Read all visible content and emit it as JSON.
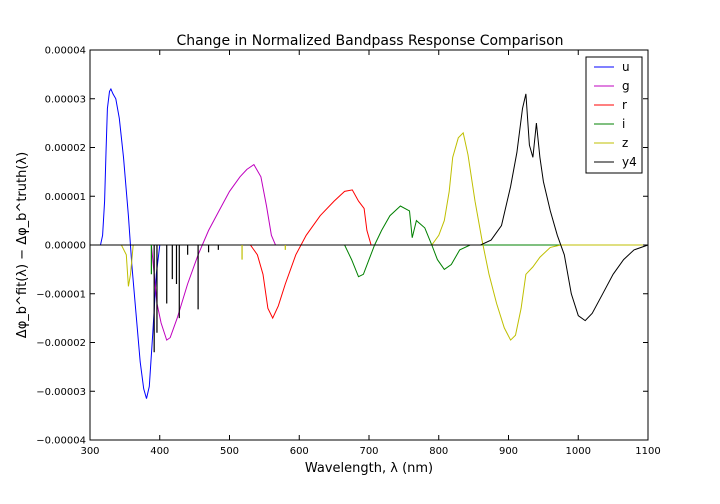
{
  "chart_data": {
    "type": "line",
    "title": "Change in Normalized Bandpass Response Comparison",
    "xlabel": "Wavelength, λ (nm)",
    "ylabel": "Δφ_b^fit(λ) − Δφ_b^truth(λ)",
    "xlim": [
      300,
      1100
    ],
    "ylim": [
      -4e-05,
      4e-05
    ],
    "x_ticks": [
      "300",
      "400",
      "500",
      "600",
      "700",
      "800",
      "900",
      "1000",
      "1100"
    ],
    "y_ticks": [
      "0.00004",
      "0.00003",
      "0.00002",
      "0.00001",
      "0.00000",
      "−0.00001",
      "−0.00002",
      "−0.00003",
      "−0.00004"
    ],
    "grid": false,
    "legend_position": "top-right",
    "series": [
      {
        "name": "u",
        "color": "#0000ff",
        "points": [
          [
            300,
            0
          ],
          [
            315,
            0
          ],
          [
            318,
            2e-06
          ],
          [
            321,
            9e-06
          ],
          [
            323,
            1.9e-05
          ],
          [
            325,
            2.8e-05
          ],
          [
            328,
            3.15e-05
          ],
          [
            330,
            3.2e-05
          ],
          [
            333,
            3.1e-05
          ],
          [
            337,
            3e-05
          ],
          [
            342,
            2.6e-05
          ],
          [
            348,
            1.8e-05
          ],
          [
            355,
            6e-06
          ],
          [
            360,
            -4e-06
          ],
          [
            366,
            -1.4e-05
          ],
          [
            372,
            -2.4e-05
          ],
          [
            377,
            -2.95e-05
          ],
          [
            381,
            -3.15e-05
          ],
          [
            385,
            -2.9e-05
          ],
          [
            390,
            -1.8e-05
          ],
          [
            395,
            -6e-06
          ],
          [
            400,
            0
          ],
          [
            420,
            0
          ],
          [
            1100,
            0
          ]
        ]
      },
      {
        "name": "g",
        "color": "#bf00bf",
        "points": [
          [
            300,
            0
          ],
          [
            388,
            0
          ],
          [
            392,
            -6e-06
          ],
          [
            396,
            -1.2e-05
          ],
          [
            402,
            -1.6e-05
          ],
          [
            410,
            -1.95e-05
          ],
          [
            415,
            -1.9e-05
          ],
          [
            425,
            -1.5e-05
          ],
          [
            440,
            -8e-06
          ],
          [
            455,
            -2e-06
          ],
          [
            470,
            3e-06
          ],
          [
            485,
            7e-06
          ],
          [
            500,
            1.1e-05
          ],
          [
            515,
            1.4e-05
          ],
          [
            525,
            1.55e-05
          ],
          [
            535,
            1.65e-05
          ],
          [
            545,
            1.4e-05
          ],
          [
            553,
            8e-06
          ],
          [
            560,
            2e-06
          ],
          [
            566,
            0
          ],
          [
            1100,
            0
          ]
        ]
      },
      {
        "name": "r",
        "color": "#ff0000",
        "points": [
          [
            300,
            0
          ],
          [
            530,
            0
          ],
          [
            540,
            -2e-06
          ],
          [
            548,
            -6e-06
          ],
          [
            555,
            -1.3e-05
          ],
          [
            562,
            -1.5e-05
          ],
          [
            570,
            -1.25e-05
          ],
          [
            580,
            -8e-06
          ],
          [
            595,
            -2e-06
          ],
          [
            610,
            2e-06
          ],
          [
            630,
            6e-06
          ],
          [
            650,
            9e-06
          ],
          [
            665,
            1.1e-05
          ],
          [
            676,
            1.13e-05
          ],
          [
            685,
            9e-06
          ],
          [
            693,
            7.5e-06
          ],
          [
            697,
            3e-06
          ],
          [
            703,
            0
          ],
          [
            1100,
            0
          ]
        ]
      },
      {
        "name": "i",
        "color": "#008000",
        "points": [
          [
            300,
            0
          ],
          [
            665,
            0
          ],
          [
            675,
            -3e-06
          ],
          [
            685,
            -6.5e-06
          ],
          [
            692,
            -6e-06
          ],
          [
            700,
            -3e-06
          ],
          [
            708,
            0
          ],
          [
            718,
            3e-06
          ],
          [
            730,
            6e-06
          ],
          [
            745,
            8e-06
          ],
          [
            758,
            7e-06
          ],
          [
            762,
            1.5e-06
          ],
          [
            768,
            5e-06
          ],
          [
            780,
            3.5e-06
          ],
          [
            790,
            0
          ],
          [
            798,
            -3e-06
          ],
          [
            808,
            -5e-06
          ],
          [
            818,
            -4e-06
          ],
          [
            830,
            -1e-06
          ],
          [
            845,
            0
          ],
          [
            1100,
            0
          ]
        ]
      },
      {
        "name": "z",
        "color": "#bfbf00",
        "points": [
          [
            300,
            0
          ],
          [
            345,
            0
          ],
          [
            352,
            -2e-06
          ],
          [
            355,
            -8.5e-06
          ],
          [
            358,
            -6e-06
          ],
          [
            362,
            0
          ],
          [
            790,
            0
          ],
          [
            800,
            2e-06
          ],
          [
            808,
            5e-06
          ],
          [
            815,
            1.1e-05
          ],
          [
            820,
            1.8e-05
          ],
          [
            828,
            2.2e-05
          ],
          [
            835,
            2.3e-05
          ],
          [
            842,
            1.85e-05
          ],
          [
            852,
            9e-06
          ],
          [
            862,
            1e-06
          ],
          [
            872,
            -6e-06
          ],
          [
            883,
            -1.2e-05
          ],
          [
            894,
            -1.7e-05
          ],
          [
            903,
            -1.95e-05
          ],
          [
            910,
            -1.85e-05
          ],
          [
            918,
            -1.3e-05
          ],
          [
            925,
            -6e-06
          ],
          [
            935,
            -4.5e-06
          ],
          [
            945,
            -2.5e-06
          ],
          [
            960,
            -5e-07
          ],
          [
            975,
            0
          ],
          [
            1100,
            0
          ]
        ]
      },
      {
        "name": "y4",
        "color": "#000000",
        "points": [
          [
            300,
            0
          ],
          [
            860,
            0
          ],
          [
            875,
            1e-06
          ],
          [
            890,
            4e-06
          ],
          [
            903,
            1.2e-05
          ],
          [
            912,
            1.9e-05
          ],
          [
            920,
            2.8e-05
          ],
          [
            925,
            3.1e-05
          ],
          [
            930,
            2.05e-05
          ],
          [
            935,
            1.8e-05
          ],
          [
            940,
            2.5e-05
          ],
          [
            945,
            1.8e-05
          ],
          [
            950,
            1.3e-05
          ],
          [
            960,
            7e-06
          ],
          [
            970,
            2e-06
          ],
          [
            980,
            -2e-06
          ],
          [
            990,
            -1e-05
          ],
          [
            1000,
            -1.45e-05
          ],
          [
            1010,
            -1.55e-05
          ],
          [
            1020,
            -1.4e-05
          ],
          [
            1035,
            -1e-05
          ],
          [
            1050,
            -6e-06
          ],
          [
            1065,
            -3e-06
          ],
          [
            1080,
            -1e-06
          ],
          [
            1100,
            0
          ]
        ]
      }
    ],
    "spikes": [
      {
        "x": 388,
        "y": -6e-06,
        "color": "#008000"
      },
      {
        "x": 392,
        "y": -2.2e-05,
        "color": "#000000"
      },
      {
        "x": 396,
        "y": -1.8e-05,
        "color": "#000000"
      },
      {
        "x": 410,
        "y": -1.2e-05,
        "color": "#000000"
      },
      {
        "x": 418,
        "y": -7e-06,
        "color": "#000000"
      },
      {
        "x": 424,
        "y": -8e-06,
        "color": "#000000"
      },
      {
        "x": 428,
        "y": -1.5e-05,
        "color": "#000000"
      },
      {
        "x": 455,
        "y": -1.32e-05,
        "color": "#000000"
      },
      {
        "x": 440,
        "y": -2e-06,
        "color": "#000000"
      },
      {
        "x": 470,
        "y": -1.5e-06,
        "color": "#000000"
      },
      {
        "x": 484,
        "y": -1e-06,
        "color": "#000000"
      },
      {
        "x": 518,
        "y": -3e-06,
        "color": "#bfbf00"
      },
      {
        "x": 580,
        "y": -1e-06,
        "color": "#bfbf00"
      }
    ]
  }
}
